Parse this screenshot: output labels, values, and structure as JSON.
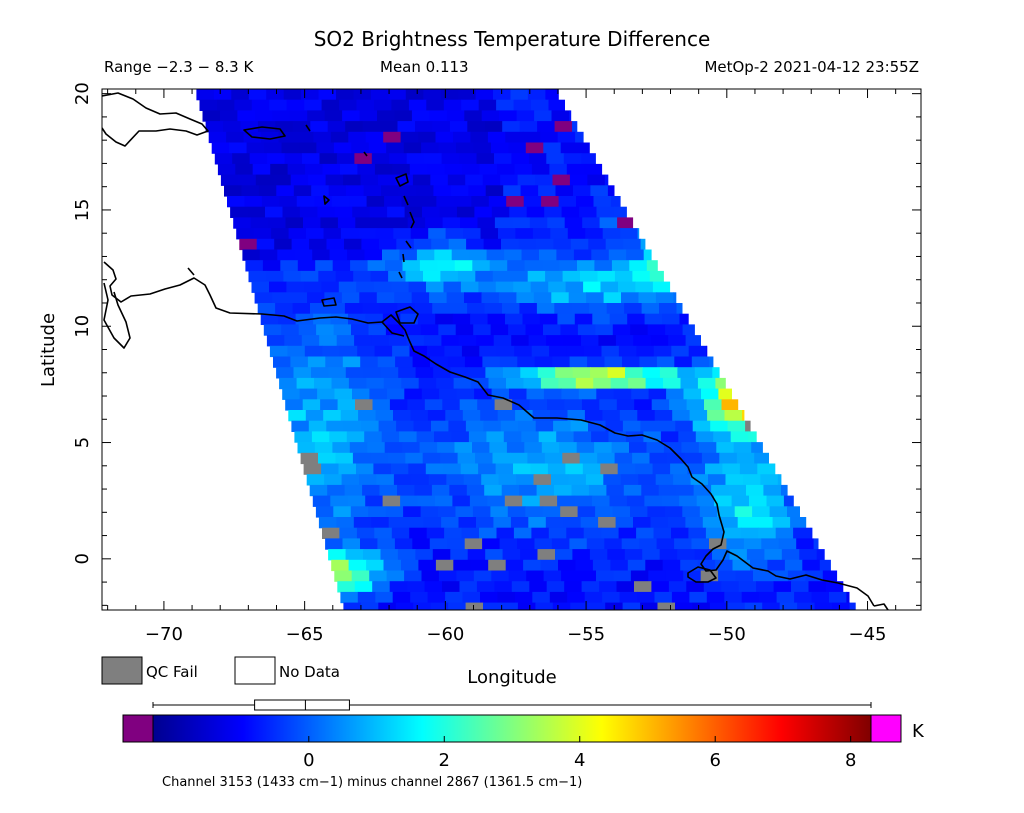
{
  "chart_data": {
    "type": "heatmap",
    "title": "SO2 Brightness Temperature Difference",
    "range_text": "Range −2.3 − 8.3 K",
    "mean_text": "Mean 0.113",
    "source_text": "MetOp-2 2021-04-12 23:55Z",
    "xlabel": "Longitude",
    "ylabel": "Latitude",
    "xlim": [
      -72.2,
      -43.1
    ],
    "ylim": [
      -2.2,
      20.2
    ],
    "xticks": [
      -70,
      -65,
      -60,
      -55,
      -50,
      -45
    ],
    "yticks": [
      0,
      5,
      10,
      15,
      20
    ],
    "legend": {
      "qc_fail": "QC Fail",
      "no_data": "No Data"
    },
    "colorbar": {
      "range": [
        -2.3,
        8.3
      ],
      "ticks": [
        0,
        2,
        4,
        6,
        8
      ],
      "unit": "K",
      "underflow_color": "#800080",
      "overflow_color": "#ff00ff",
      "boxplot": {
        "whisker_low": -2.3,
        "q1": -0.8,
        "median": -0.05,
        "q3": 0.6,
        "whisker_high": 8.3
      }
    },
    "channel_note": "Channel 3153 (1433 cm−1) minus channel 2867 (1361.5 cm−1)",
    "swath": {
      "corners": [
        [
          -68.9,
          20.2
        ],
        [
          -56.1,
          20.2
        ],
        [
          -45.4,
          -2.2
        ],
        [
          -63.6,
          -2.2
        ]
      ],
      "background_k": -0.8
    },
    "plumes": [
      {
        "lon": -50.0,
        "lat": 12.5,
        "peak_k": 7.6,
        "sx": 1.6,
        "sy": 0.7
      },
      {
        "lon": -48.8,
        "lat": 6.8,
        "peak_k": 7.0,
        "sx": 1.3,
        "sy": 0.9
      },
      {
        "lon": -54.5,
        "lat": 7.8,
        "peak_k": 4.8,
        "sx": 2.0,
        "sy": 0.3
      },
      {
        "lon": -64.2,
        "lat": -0.6,
        "peak_k": 4.2,
        "sx": 1.3,
        "sy": 0.6
      },
      {
        "lon": -60.2,
        "lat": 12.8,
        "peak_k": 1.6,
        "sx": 1.4,
        "sy": 0.8
      },
      {
        "lon": -55.0,
        "lat": 11.8,
        "peak_k": 1.2,
        "sx": 2.2,
        "sy": 0.8
      },
      {
        "lon": -50.5,
        "lat": 14.6,
        "peak_k": 2.4,
        "sx": 2.0,
        "sy": 0.7
      },
      {
        "lon": -49.2,
        "lat": 2.5,
        "peak_k": 1.5,
        "sx": 1.2,
        "sy": 2.0
      },
      {
        "lon": -64.5,
        "lat": 5.5,
        "peak_k": 1.0,
        "sx": 1.5,
        "sy": 3.5
      },
      {
        "lon": -56.5,
        "lat": 4.0,
        "peak_k": 0.8,
        "sx": 3.0,
        "sy": 2.0
      }
    ],
    "colors": {
      "qc_fail": "#7f7f7f",
      "coastline": "#000000",
      "scale": [
        "#00008f",
        "#0000ff",
        "#0080ff",
        "#00ffff",
        "#80ff80",
        "#ffff00",
        "#ff8000",
        "#ff0000",
        "#800000"
      ]
    }
  }
}
